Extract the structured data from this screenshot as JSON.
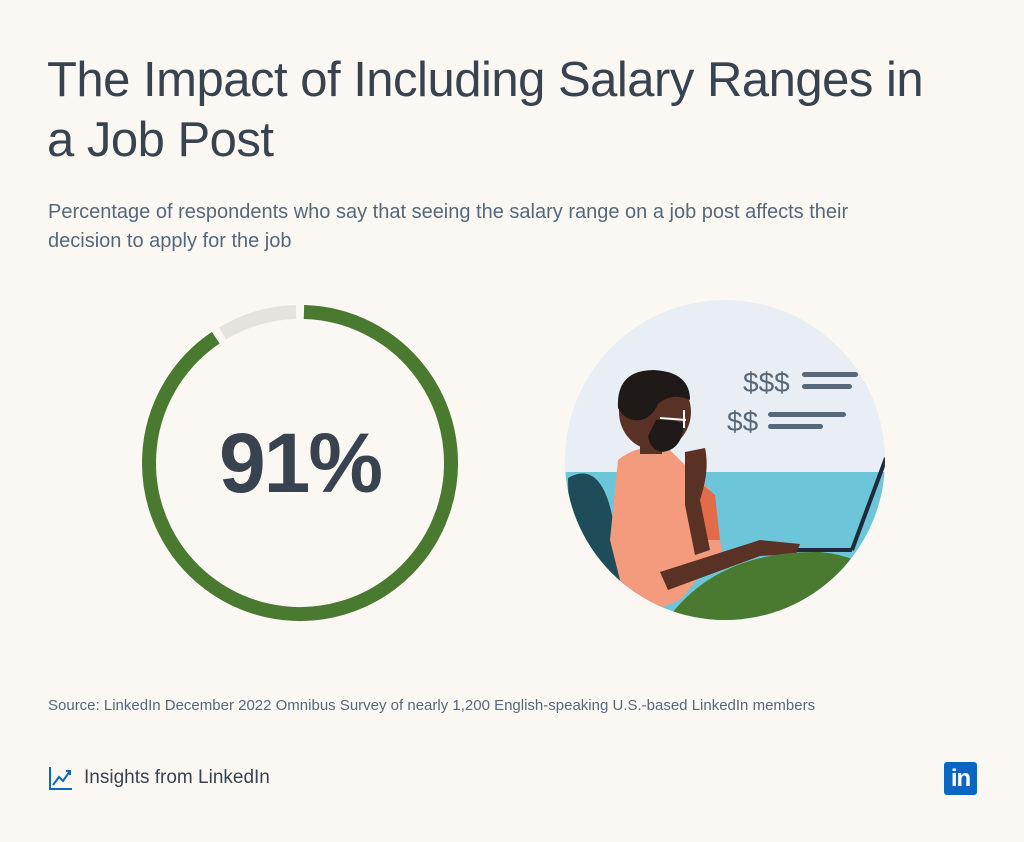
{
  "header": {
    "title": "The Impact of Including Salary Ranges in a Job Post",
    "subtitle": "Percentage of respondents who say that seeing the salary range on a job post affects their decision to apply for the job"
  },
  "chart_data": {
    "type": "pie",
    "title": "The Impact of Including Salary Ranges in a Job Post",
    "subtitle": "Percentage of respondents who say that seeing the salary range on a job post affects their decision to apply for the job",
    "value_label": "91%",
    "slices": [
      {
        "value": 91,
        "color": "#4a7a2f"
      },
      {
        "value": 9,
        "color": "#e6e3de"
      }
    ]
  },
  "illustration": {
    "labels": [
      "$$$",
      "$$"
    ]
  },
  "footer": {
    "source": "Source: LinkedIn December 2022 Omnibus Survey of nearly 1,200 English-speaking U.S.-based LinkedIn members",
    "brand": "Insights from LinkedIn",
    "logo_text": "in",
    "brand_icon": "line-chart-icon",
    "logo_icon": "linkedin-logo-icon"
  },
  "colors": {
    "background": "#fbf8f4",
    "accent_green": "#4a7a2f",
    "remainder_gray": "#e6e3de",
    "text_dark": "#38434f",
    "linkedin_blue": "#0a66c2"
  }
}
